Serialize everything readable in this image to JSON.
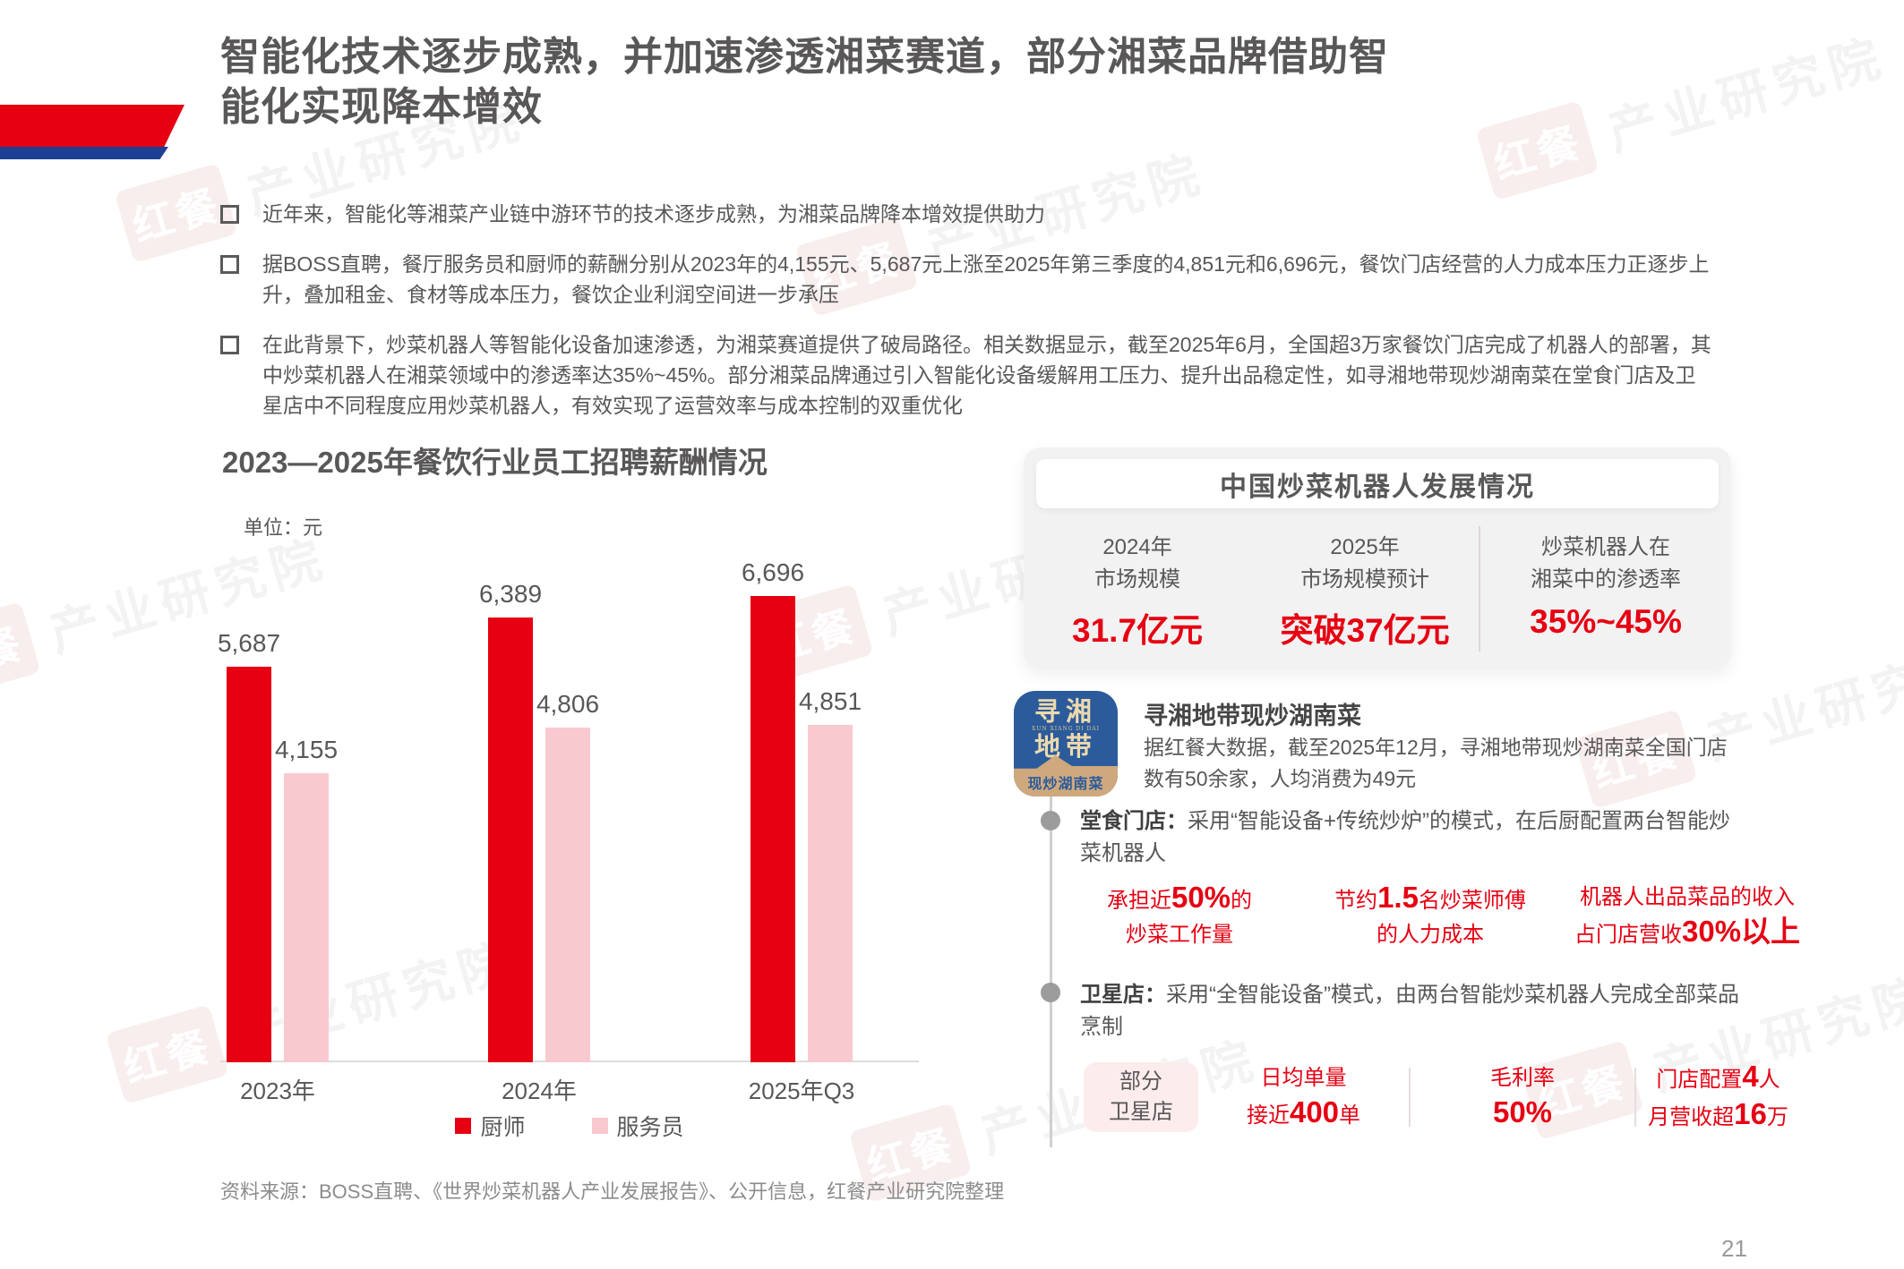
{
  "title": {
    "line1": "智能化技术逐步成熟，并加速渗透湘菜赛道，部分湘菜品牌借助智",
    "line2": "能化实现降本增效"
  },
  "bullets": [
    "近年来，智能化等湘菜产业链中游环节的技术逐步成熟，为湘菜品牌降本增效提供助力",
    "据BOSS直聘，餐厅服务员和厨师的薪酬分别从2023年的4,155元、5,687元上涨至2025年第三季度的4,851元和6,696元，餐饮门店经营的人力成本压力正逐步上升，叠加租金、食材等成本压力，餐饮企业利润空间进一步承压",
    "在此背景下，炒菜机器人等智能化设备加速渗透，为湘菜赛道提供了破局路径。相关数据显示，截至2025年6月，全国超3万家餐饮门店完成了机器人的部署，其中炒菜机器人在湘菜领域中的渗透率达35%~45%。部分湘菜品牌通过引入智能化设备缓解用工压力、提升出品稳定性，如寻湘地带现炒湖南菜在堂食门店及卫星店中不同程度应用炒菜机器人，有效实现了运营效率与成本控制的双重优化"
  ],
  "chart_data": {
    "type": "bar",
    "title": "2023—2025年餐饮行业员工招聘薪酬情况",
    "unit_label": "单位：元",
    "categories": [
      "2023年",
      "2024年",
      "2025年Q3"
    ],
    "series": [
      {
        "name": "厨师",
        "color": "#e60012",
        "values": [
          5687,
          6389,
          6696
        ]
      },
      {
        "name": "服务员",
        "color": "#f9c9d0",
        "values": [
          4155,
          4806,
          4851
        ]
      }
    ],
    "value_labels": [
      [
        "5,687",
        "6,389",
        "6,696"
      ],
      [
        "4,155",
        "4,806",
        "4,851"
      ]
    ],
    "ylim": [
      0,
      7000
    ],
    "grid": false,
    "legend_position": "bottom"
  },
  "panel": {
    "title": "中国炒菜机器人发展情况",
    "stats": [
      {
        "label1": "2024年",
        "label2": "市场规模",
        "value": "31.7亿元"
      },
      {
        "label1": "2025年",
        "label2": "市场规模预计",
        "value": "突破37亿元"
      },
      {
        "label1": "炒菜机器人在",
        "label2": "湘菜中的渗透率",
        "value": "35%~45%"
      }
    ]
  },
  "brand": {
    "logo": {
      "cn1": "寻湘",
      "en": "XUN XIANG DI DAI",
      "cn2": "地带",
      "banner": "现炒湖南菜"
    },
    "name": "寻湘地带现炒湖南菜",
    "desc": "据红餐大数据，截至2025年12月，寻湘地带现炒湖南菜全国门店数有50余家，人均消费为49元"
  },
  "dine_in": {
    "label": "堂食门店：",
    "text": "采用“智能设备+传统炒炉”的模式，在后厨配置两台智能炒菜机器人",
    "stats": [
      {
        "l1a": "承担近",
        "l1b": "50%",
        "l1c": "的",
        "l2": "炒菜工作量"
      },
      {
        "l1a": "节约",
        "l1b": "1.5",
        "l1c": "名炒菜师傅",
        "l2": "的人力成本"
      },
      {
        "l1": "机器人出品菜品的收入",
        "l2a": "占门店营收",
        "l2b": "30%以上"
      }
    ]
  },
  "satellite": {
    "label": "卫星店：",
    "text": "采用“全智能设备”模式，由两台智能炒菜机器人完成全部菜品烹制",
    "tag1": "部分",
    "tag2": "卫星店",
    "stats": [
      {
        "l1": "日均单量",
        "l2a": "接近",
        "l2b": "400",
        "l2c": "单"
      },
      {
        "l1": "毛利率",
        "l2b": "50%"
      },
      {
        "l1a": "门店配置",
        "l1b": "4",
        "l1c": "人",
        "l2a": "月营收超",
        "l2b": "16",
        "l2c": "万"
      }
    ]
  },
  "footer": {
    "source": "资料来源：BOSS直聘、《世界炒菜机器人产业发展报告》、公开信息，红餐产业研究院整理",
    "page_number": "21"
  },
  "watermark": {
    "brand": "红餐",
    "name": "产业研究院"
  },
  "colors": {
    "accent_red": "#e60012",
    "bar_pink": "#f9c9d0",
    "deco_blue": "#1d3f94",
    "logo_blue": "#2b5b9b",
    "logo_tan": "#cfa87d",
    "panel_gray": "#f2f2f2",
    "text_gray": "#595757"
  }
}
